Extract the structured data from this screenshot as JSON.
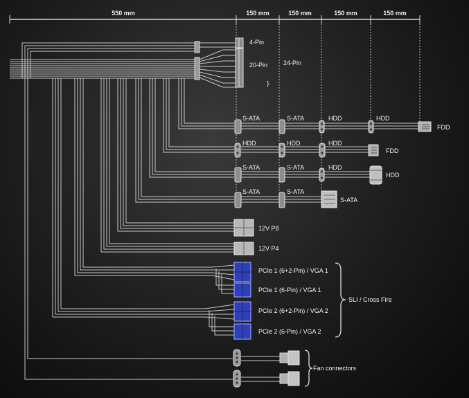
{
  "colors": {
    "wire": "#c8c8c8",
    "text": "#f2f2f2",
    "connector_gray": "#aaaaaa",
    "connector_blue": "#2f3fb8"
  },
  "dimensions": {
    "main": "550 mm",
    "segment": [
      "150 mm",
      "150 mm",
      "150 mm",
      "150 mm"
    ]
  },
  "atx": {
    "pin4": "4-Pin",
    "pin20": "20-Pin",
    "pin24": "24-Pin"
  },
  "chains": [
    [
      "S-ATA",
      "S-ATA",
      "HDD",
      "HDD",
      "FDD"
    ],
    [
      "HDD",
      "HDD",
      "HDD",
      "FDD"
    ],
    [
      "S-ATA",
      "S-ATA",
      "HDD",
      "HDD"
    ],
    [
      "S-ATA",
      "S-ATA",
      "S-ATA"
    ]
  ],
  "cpu": {
    "p8": "12V P8",
    "p4": "12V P4"
  },
  "pcie": {
    "items": [
      "PCIe 1 (6+2-Pin) / VGA 1",
      "PCIe 1 (6-Pin) / VGA 1",
      "PCIe 2 (6+2-Pin) / VGA 2",
      "PCIe 2 (6-Pin) / VGA 2"
    ],
    "group": "SLI / Cross Fire"
  },
  "fan": {
    "label": "Fan connectors"
  }
}
